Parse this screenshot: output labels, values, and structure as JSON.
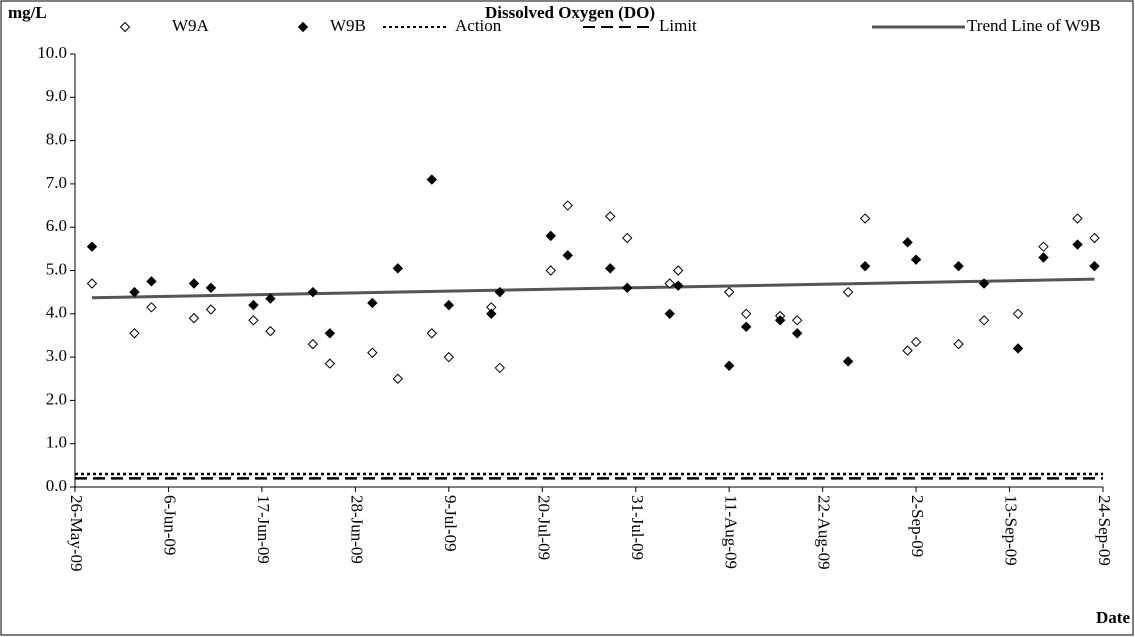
{
  "chart_data": {
    "type": "scatter",
    "title": "Dissolved Oxygen (DO)",
    "y_label": "mg/L",
    "x_label": "Date",
    "x": [
      "2009-05-28",
      "2009-06-02",
      "2009-06-04",
      "2009-06-09",
      "2009-06-11",
      "2009-06-16",
      "2009-06-18",
      "2009-06-23",
      "2009-06-25",
      "2009-06-30",
      "2009-07-03",
      "2009-07-07",
      "2009-07-09",
      "2009-07-14",
      "2009-07-15",
      "2009-07-21",
      "2009-07-23",
      "2009-07-28",
      "2009-07-30",
      "2009-08-04",
      "2009-08-05",
      "2009-08-11",
      "2009-08-13",
      "2009-08-17",
      "2009-08-19",
      "2009-08-25",
      "2009-08-27",
      "2009-09-01",
      "2009-09-02",
      "2009-09-07",
      "2009-09-10",
      "2009-09-14",
      "2009-09-17",
      "2009-09-21",
      "2009-09-23"
    ],
    "series": [
      {
        "name": "W9A",
        "color": "#000000",
        "filled": false,
        "values": [
          4.7,
          3.55,
          4.15,
          3.9,
          4.1,
          3.85,
          3.6,
          3.3,
          2.85,
          3.1,
          2.5,
          3.55,
          3.0,
          4.15,
          2.75,
          5.0,
          6.5,
          6.25,
          5.75,
          4.7,
          5.0,
          4.5,
          4.0,
          3.95,
          3.85,
          4.5,
          6.2,
          3.15,
          3.35,
          3.3,
          3.85,
          4.0,
          5.55,
          6.2,
          5.75
        ]
      },
      {
        "name": "W9B",
        "color": "#000000",
        "filled": true,
        "values": [
          5.55,
          4.5,
          4.75,
          4.7,
          4.6,
          4.2,
          4.35,
          4.5,
          3.55,
          4.25,
          5.05,
          7.1,
          4.2,
          4.0,
          4.5,
          5.8,
          5.35,
          5.05,
          4.6,
          4.0,
          4.65,
          2.8,
          3.7,
          3.85,
          3.55,
          2.9,
          5.1,
          5.65,
          5.25,
          5.1,
          4.7,
          3.2,
          5.3,
          5.6,
          5.1
        ]
      }
    ],
    "reference_lines": [
      {
        "name": "Action",
        "value": 0.3,
        "style": "dotted",
        "color": "#000000"
      },
      {
        "name": "Limit",
        "value": 0.2,
        "style": "dashed",
        "color": "#000000"
      }
    ],
    "trend": {
      "name": "Trend Line of W9B",
      "color": "#555555",
      "x": [
        "2009-05-28",
        "2009-09-23"
      ],
      "values": [
        4.37,
        4.8
      ]
    },
    "xlim": [
      "2009-05-26",
      "2009-09-24"
    ],
    "xticks": [
      {
        "value": "2009-05-26",
        "label": "26-May-09"
      },
      {
        "value": "2009-06-06",
        "label": "6-Jun-09"
      },
      {
        "value": "2009-06-17",
        "label": "17-Jun-09"
      },
      {
        "value": "2009-06-28",
        "label": "28-Jun-09"
      },
      {
        "value": "2009-07-09",
        "label": "9-Jul-09"
      },
      {
        "value": "2009-07-20",
        "label": "20-Jul-09"
      },
      {
        "value": "2009-07-31",
        "label": "31-Jul-09"
      },
      {
        "value": "2009-08-11",
        "label": "11-Aug-09"
      },
      {
        "value": "2009-08-22",
        "label": "22-Aug-09"
      },
      {
        "value": "2009-09-02",
        "label": "2-Sep-09"
      },
      {
        "value": "2009-09-13",
        "label": "13-Sep-09"
      },
      {
        "value": "2009-09-24",
        "label": "24-Sep-09"
      }
    ],
    "ylim": [
      0,
      10
    ],
    "yticks": [
      {
        "value": 0,
        "label": "0.0"
      },
      {
        "value": 1,
        "label": "1.0"
      },
      {
        "value": 2,
        "label": "2.0"
      },
      {
        "value": 3,
        "label": "3.0"
      },
      {
        "value": 4,
        "label": "4.0"
      },
      {
        "value": 5,
        "label": "5.0"
      },
      {
        "value": 6,
        "label": "6.0"
      },
      {
        "value": 7,
        "label": "7.0"
      },
      {
        "value": 8,
        "label": "8.0"
      },
      {
        "value": 9,
        "label": "9.0"
      },
      {
        "value": 10,
        "label": "10.0"
      }
    ],
    "grid": false
  }
}
